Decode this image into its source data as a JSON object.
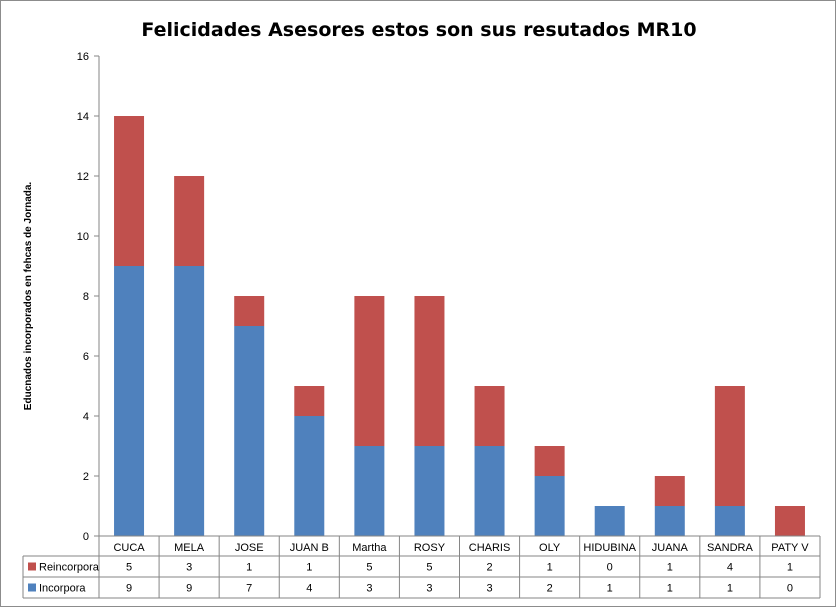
{
  "chart_data": {
    "type": "bar",
    "stacked": true,
    "title": "Felicidades Asesores estos son sus resutados MR10",
    "xlabel": "",
    "ylabel": "Educnados incorporados en fehcas de Jornada.",
    "ylim": [
      0,
      16
    ],
    "yticks": [
      0,
      2,
      4,
      6,
      8,
      10,
      12,
      14,
      16
    ],
    "grid": false,
    "legend": "data-table",
    "categories": [
      "CUCA",
      "MELA",
      "JOSE",
      "JUAN B",
      "Martha",
      "ROSY",
      "CHARIS",
      "OLY",
      "HIDUBINA",
      "JUANA",
      "SANDRA",
      "PATY V"
    ],
    "series": [
      {
        "name": "Incorpora",
        "color": "#4f81bd",
        "values": [
          9,
          9,
          7,
          4,
          3,
          3,
          3,
          2,
          1,
          1,
          1,
          0
        ]
      },
      {
        "name": "Reincorpora",
        "color": "#c0504d",
        "values": [
          5,
          3,
          1,
          1,
          5,
          5,
          2,
          1,
          0,
          1,
          4,
          1
        ]
      }
    ],
    "table_row_order": [
      "Reincorpora",
      "Incorpora"
    ]
  }
}
